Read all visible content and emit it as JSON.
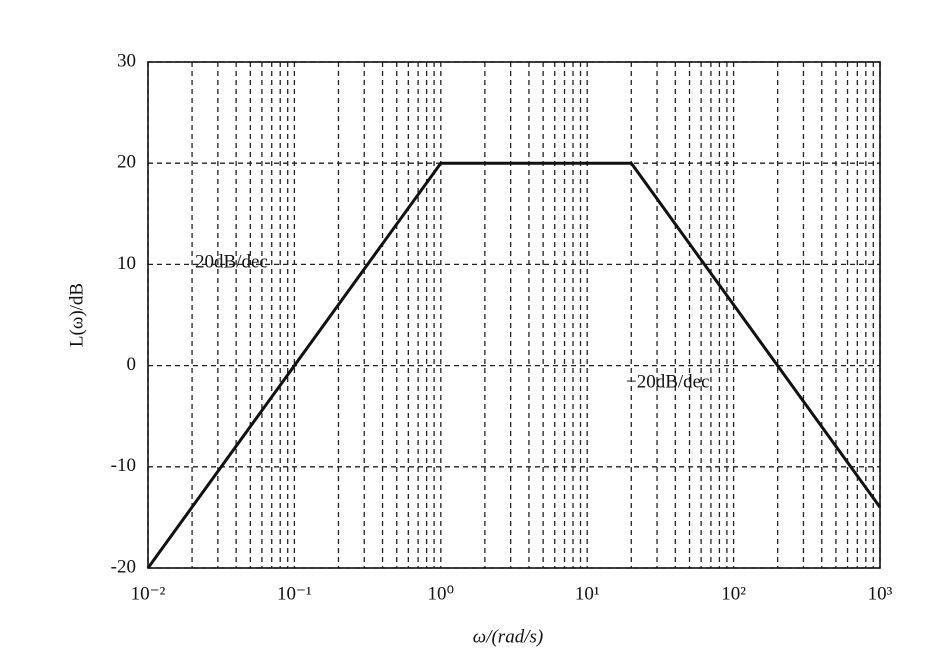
{
  "chart_data": {
    "type": "line",
    "x_label": "ω/(rad/s)",
    "y_label": "L(ω)/dB",
    "log_x": true,
    "grid": true,
    "series": [
      {
        "name": "L(ω)",
        "color": "#111111",
        "x": [
          0.01,
          1,
          20,
          1000
        ],
        "values": [
          -20,
          20,
          20,
          -14
        ]
      }
    ],
    "xlim": [
      0.01,
      1000
    ],
    "ylim": [
      -20,
      30
    ],
    "xticks": [
      {
        "value": 0.01,
        "label": "10⁻²"
      },
      {
        "value": 0.1,
        "label": "10⁻¹"
      },
      {
        "value": 1,
        "label": "10⁰"
      },
      {
        "value": 10,
        "label": "10¹"
      },
      {
        "value": 100,
        "label": "10²"
      },
      {
        "value": 1000,
        "label": "10³"
      }
    ],
    "xminorticks": [
      0.02,
      0.03,
      0.04,
      0.05,
      0.06,
      0.07,
      0.08,
      0.09,
      0.2,
      0.3,
      0.4,
      0.5,
      0.6,
      0.7,
      0.8,
      0.9,
      2,
      3,
      4,
      5,
      6,
      7,
      8,
      9,
      20,
      30,
      40,
      50,
      60,
      70,
      80,
      90,
      200,
      300,
      400,
      500,
      600,
      700,
      800,
      900
    ],
    "yticks": [
      -20,
      -10,
      0,
      10,
      20,
      30
    ],
    "annotations": [
      "20dB/dec",
      "−20dB/dec"
    ]
  }
}
